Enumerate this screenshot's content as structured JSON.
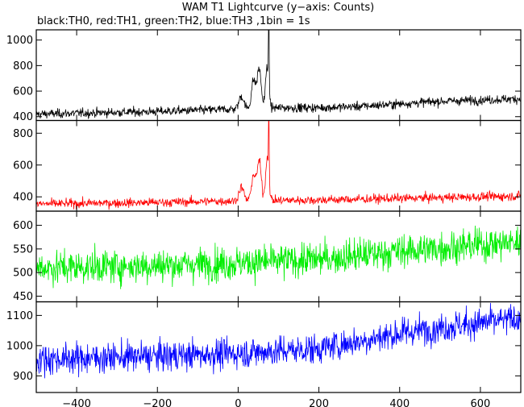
{
  "chart_data": {
    "type": "line",
    "title": "WAM T1 Lightcurve (y−axis: Counts)",
    "subtitle": "black:TH0, red:TH1, green:TH2, blue:TH3 ,1bin = 1s",
    "xlabel": "",
    "xlim": [
      -500,
      700
    ],
    "x_ticks": [
      -400,
      -200,
      0,
      200,
      400,
      600
    ],
    "x_tick_labels": [
      "−400",
      "−200",
      "0",
      "200",
      "400",
      "600"
    ],
    "grid": false,
    "bin_seconds": 1,
    "panels": [
      {
        "series": "TH0",
        "color": "#000000",
        "ylabel": "",
        "ylim": [
          370,
          1080
        ],
        "y_ticks": [
          400,
          600,
          800,
          1000
        ],
        "baseline": [
          [
            -500,
            420
          ],
          [
            -200,
            440
          ],
          [
            0,
            460
          ],
          [
            100,
            470
          ],
          [
            200,
            470
          ],
          [
            300,
            480
          ],
          [
            400,
            500
          ],
          [
            500,
            520
          ],
          [
            700,
            540
          ]
        ],
        "noise": 25,
        "peaks": [
          {
            "x": 8,
            "height": 100,
            "width": 6
          },
          {
            "x": 38,
            "height": 220,
            "width": 5
          },
          {
            "x": 52,
            "height": 310,
            "width": 5
          },
          {
            "x": 72,
            "height": 330,
            "width": 4
          },
          {
            "x": 76,
            "height": 620,
            "width": 0.8
          }
        ]
      },
      {
        "series": "TH1",
        "color": "#ff0000",
        "ylabel": "",
        "ylim": [
          310,
          880
        ],
        "y_ticks": [
          400,
          600,
          800
        ],
        "baseline": [
          [
            -500,
            355
          ],
          [
            -200,
            365
          ],
          [
            0,
            375
          ],
          [
            200,
            380
          ],
          [
            400,
            390
          ],
          [
            700,
            405
          ]
        ],
        "noise": 20,
        "peaks": [
          {
            "x": 8,
            "height": 85,
            "width": 6
          },
          {
            "x": 38,
            "height": 160,
            "width": 5
          },
          {
            "x": 52,
            "height": 250,
            "width": 5
          },
          {
            "x": 72,
            "height": 270,
            "width": 4
          },
          {
            "x": 76,
            "height": 490,
            "width": 0.8
          }
        ]
      },
      {
        "series": "TH2",
        "color": "#00ee00",
        "ylabel": "",
        "ylim": [
          438,
          630
        ],
        "y_ticks": [
          450,
          500,
          550,
          600
        ],
        "baseline": [
          [
            -500,
            510
          ],
          [
            -200,
            515
          ],
          [
            0,
            520
          ],
          [
            200,
            528
          ],
          [
            400,
            545
          ],
          [
            700,
            565
          ]
        ],
        "noise": 25,
        "peaks": []
      },
      {
        "series": "TH3",
        "color": "#0000ff",
        "ylabel": "",
        "ylim": [
          845,
          1145
        ],
        "y_ticks": [
          900,
          1000,
          1100
        ],
        "baseline": [
          [
            -500,
            955
          ],
          [
            -200,
            965
          ],
          [
            0,
            975
          ],
          [
            200,
            990
          ],
          [
            400,
            1040
          ],
          [
            500,
            1060
          ],
          [
            700,
            1090
          ]
        ],
        "noise": 35,
        "peaks": []
      }
    ]
  }
}
